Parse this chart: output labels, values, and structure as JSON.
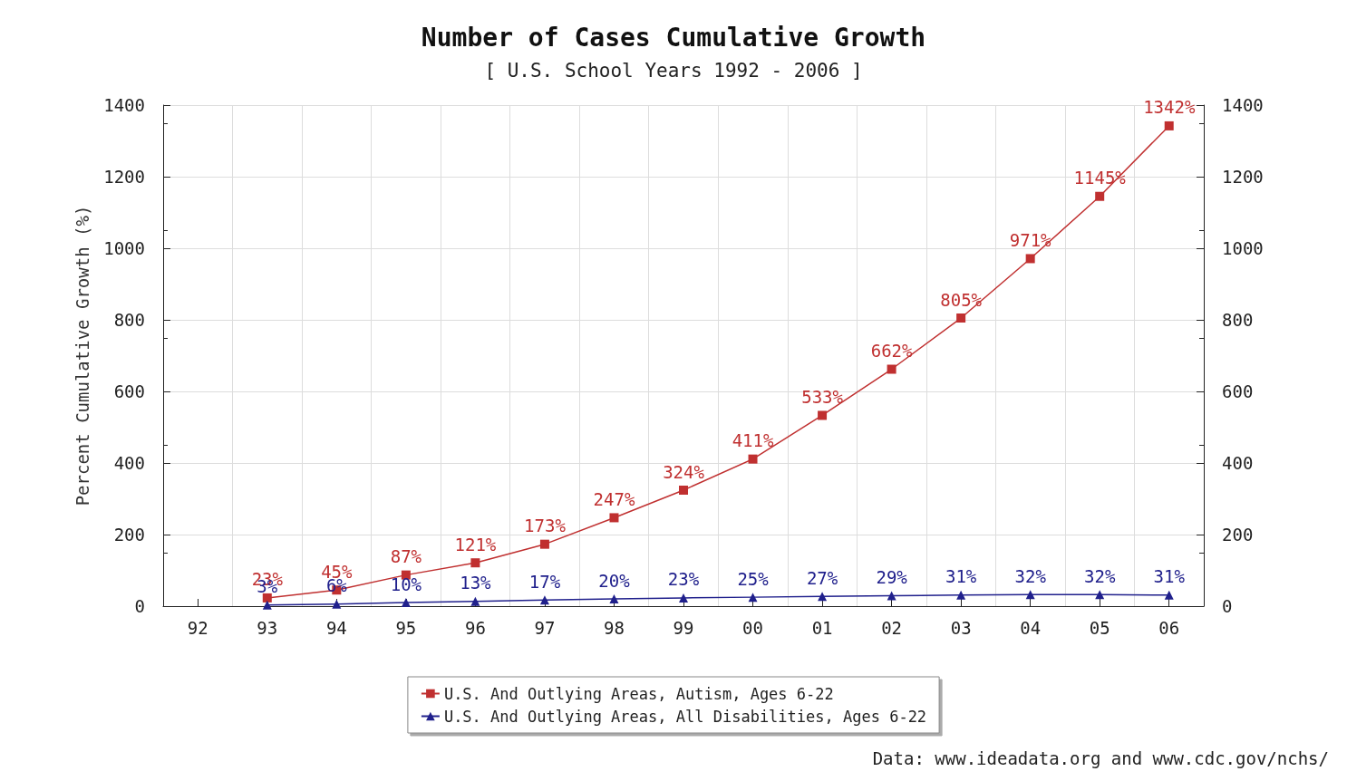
{
  "chart_data": {
    "type": "line",
    "title": "Number of Cases Cumulative Growth",
    "subtitle": "[ U.S. School Years 1992 - 2006 ]",
    "ylabel": "Percent Cumulative Growth (%)",
    "categories": [
      "92",
      "93",
      "94",
      "95",
      "96",
      "97",
      "98",
      "99",
      "00",
      "01",
      "02",
      "03",
      "04",
      "05",
      "06"
    ],
    "series": [
      {
        "name": "U.S. And Outlying Areas, Autism, Ages 6-22",
        "color": "#c03030",
        "marker": "square",
        "values": [
          null,
          23,
          45,
          87,
          121,
          173,
          247,
          324,
          411,
          533,
          662,
          805,
          971,
          1145,
          1342
        ],
        "value_labels": [
          null,
          "23%",
          "45%",
          "87%",
          "121%",
          "173%",
          "247%",
          "324%",
          "411%",
          "533%",
          "662%",
          "805%",
          "971%",
          "1145%",
          "1342%"
        ]
      },
      {
        "name": "U.S. And Outlying Areas, All Disabilities, Ages 6-22",
        "color": "#20208c",
        "marker": "triangle",
        "values": [
          null,
          3,
          6,
          10,
          13,
          17,
          20,
          23,
          25,
          27,
          29,
          31,
          32,
          32,
          31
        ],
        "value_labels": [
          null,
          "3%",
          "6%",
          "10%",
          "13%",
          "17%",
          "20%",
          "23%",
          "25%",
          "27%",
          "29%",
          "31%",
          "32%",
          "32%",
          "31%"
        ]
      }
    ],
    "ylim": [
      0,
      1400
    ],
    "yticks": [
      0,
      200,
      400,
      600,
      800,
      1000,
      1200,
      1400
    ],
    "y2lim": [
      0,
      1400
    ],
    "y2ticks": [
      0,
      200,
      400,
      600,
      800,
      1000,
      1200,
      1400
    ],
    "grid": true,
    "legend": "bottom",
    "line_style": "solid",
    "annotations": [
      "Data: www.ideadata.org and www.cdc.gov/nchs/"
    ]
  }
}
